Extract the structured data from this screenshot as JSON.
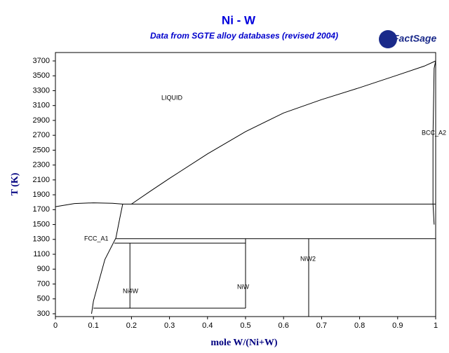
{
  "chart_data": {
    "type": "line",
    "title": "Ni - W",
    "subtitle": "Data from SGTE alloy databases (revised 2004)",
    "logo": "FactSage",
    "x_label": "mole W/(Ni+W)",
    "y_label": "T (K)",
    "color": "#000000",
    "xlim": [
      0,
      1
    ],
    "ylim": [
      262,
      3813
    ],
    "xticks": [
      0,
      0.1,
      0.2,
      0.3,
      0.4,
      0.5,
      0.6,
      0.7,
      0.8,
      0.9,
      1
    ],
    "yticks": [
      300,
      500,
      700,
      900,
      1100,
      1300,
      1500,
      1700,
      1900,
      2100,
      2300,
      2500,
      2700,
      2900,
      3100,
      3300,
      3500,
      3700
    ],
    "annotations": [
      "LIQUID",
      "BCC_A2",
      "FCC_A1",
      "NiW2",
      "Ni4W",
      "NiW"
    ],
    "series": [
      {
        "x": [
          0,
          0.05,
          0.1,
          0.15,
          0.177
        ],
        "values": [
          1740,
          1782,
          1792,
          1786,
          1775
        ]
      },
      {
        "x": [
          0.2,
          0.25,
          0.3,
          0.4,
          0.5,
          0.6,
          0.7,
          0.8,
          0.9,
          0.97,
          1
        ],
        "values": [
          1775,
          1950,
          2120,
          2450,
          2750,
          3000,
          3180,
          3340,
          3510,
          3630,
          3700
        ]
      },
      {
        "x": [
          0.177,
          0.17,
          0.159,
          0.13,
          0.1,
          0.095
        ],
        "values": [
          1775,
          1600,
          1320,
          1030,
          470,
          300
        ]
      },
      {
        "x": [
          0.177,
          1
        ],
        "values": [
          1775,
          1775
        ]
      },
      {
        "x": [
          0.159,
          1
        ],
        "values": [
          1310,
          1310
        ]
      },
      {
        "x": [
          0.155,
          0.5
        ],
        "values": [
          1250,
          1250
        ]
      },
      {
        "x": [
          0.196,
          0.196
        ],
        "values": [
          1250,
          375
        ]
      },
      {
        "x": [
          0.1,
          0.5
        ],
        "values": [
          375,
          375
        ]
      },
      {
        "x": [
          0.5,
          0.5
        ],
        "values": [
          1310,
          375
        ]
      },
      {
        "x": [
          0.666,
          0.666
        ],
        "values": [
          1310,
          262
        ]
      },
      {
        "x": [
          1,
          0.996,
          0.993,
          0.993,
          0.996
        ],
        "values": [
          3700,
          3600,
          2700,
          1775,
          1500
        ]
      }
    ]
  }
}
